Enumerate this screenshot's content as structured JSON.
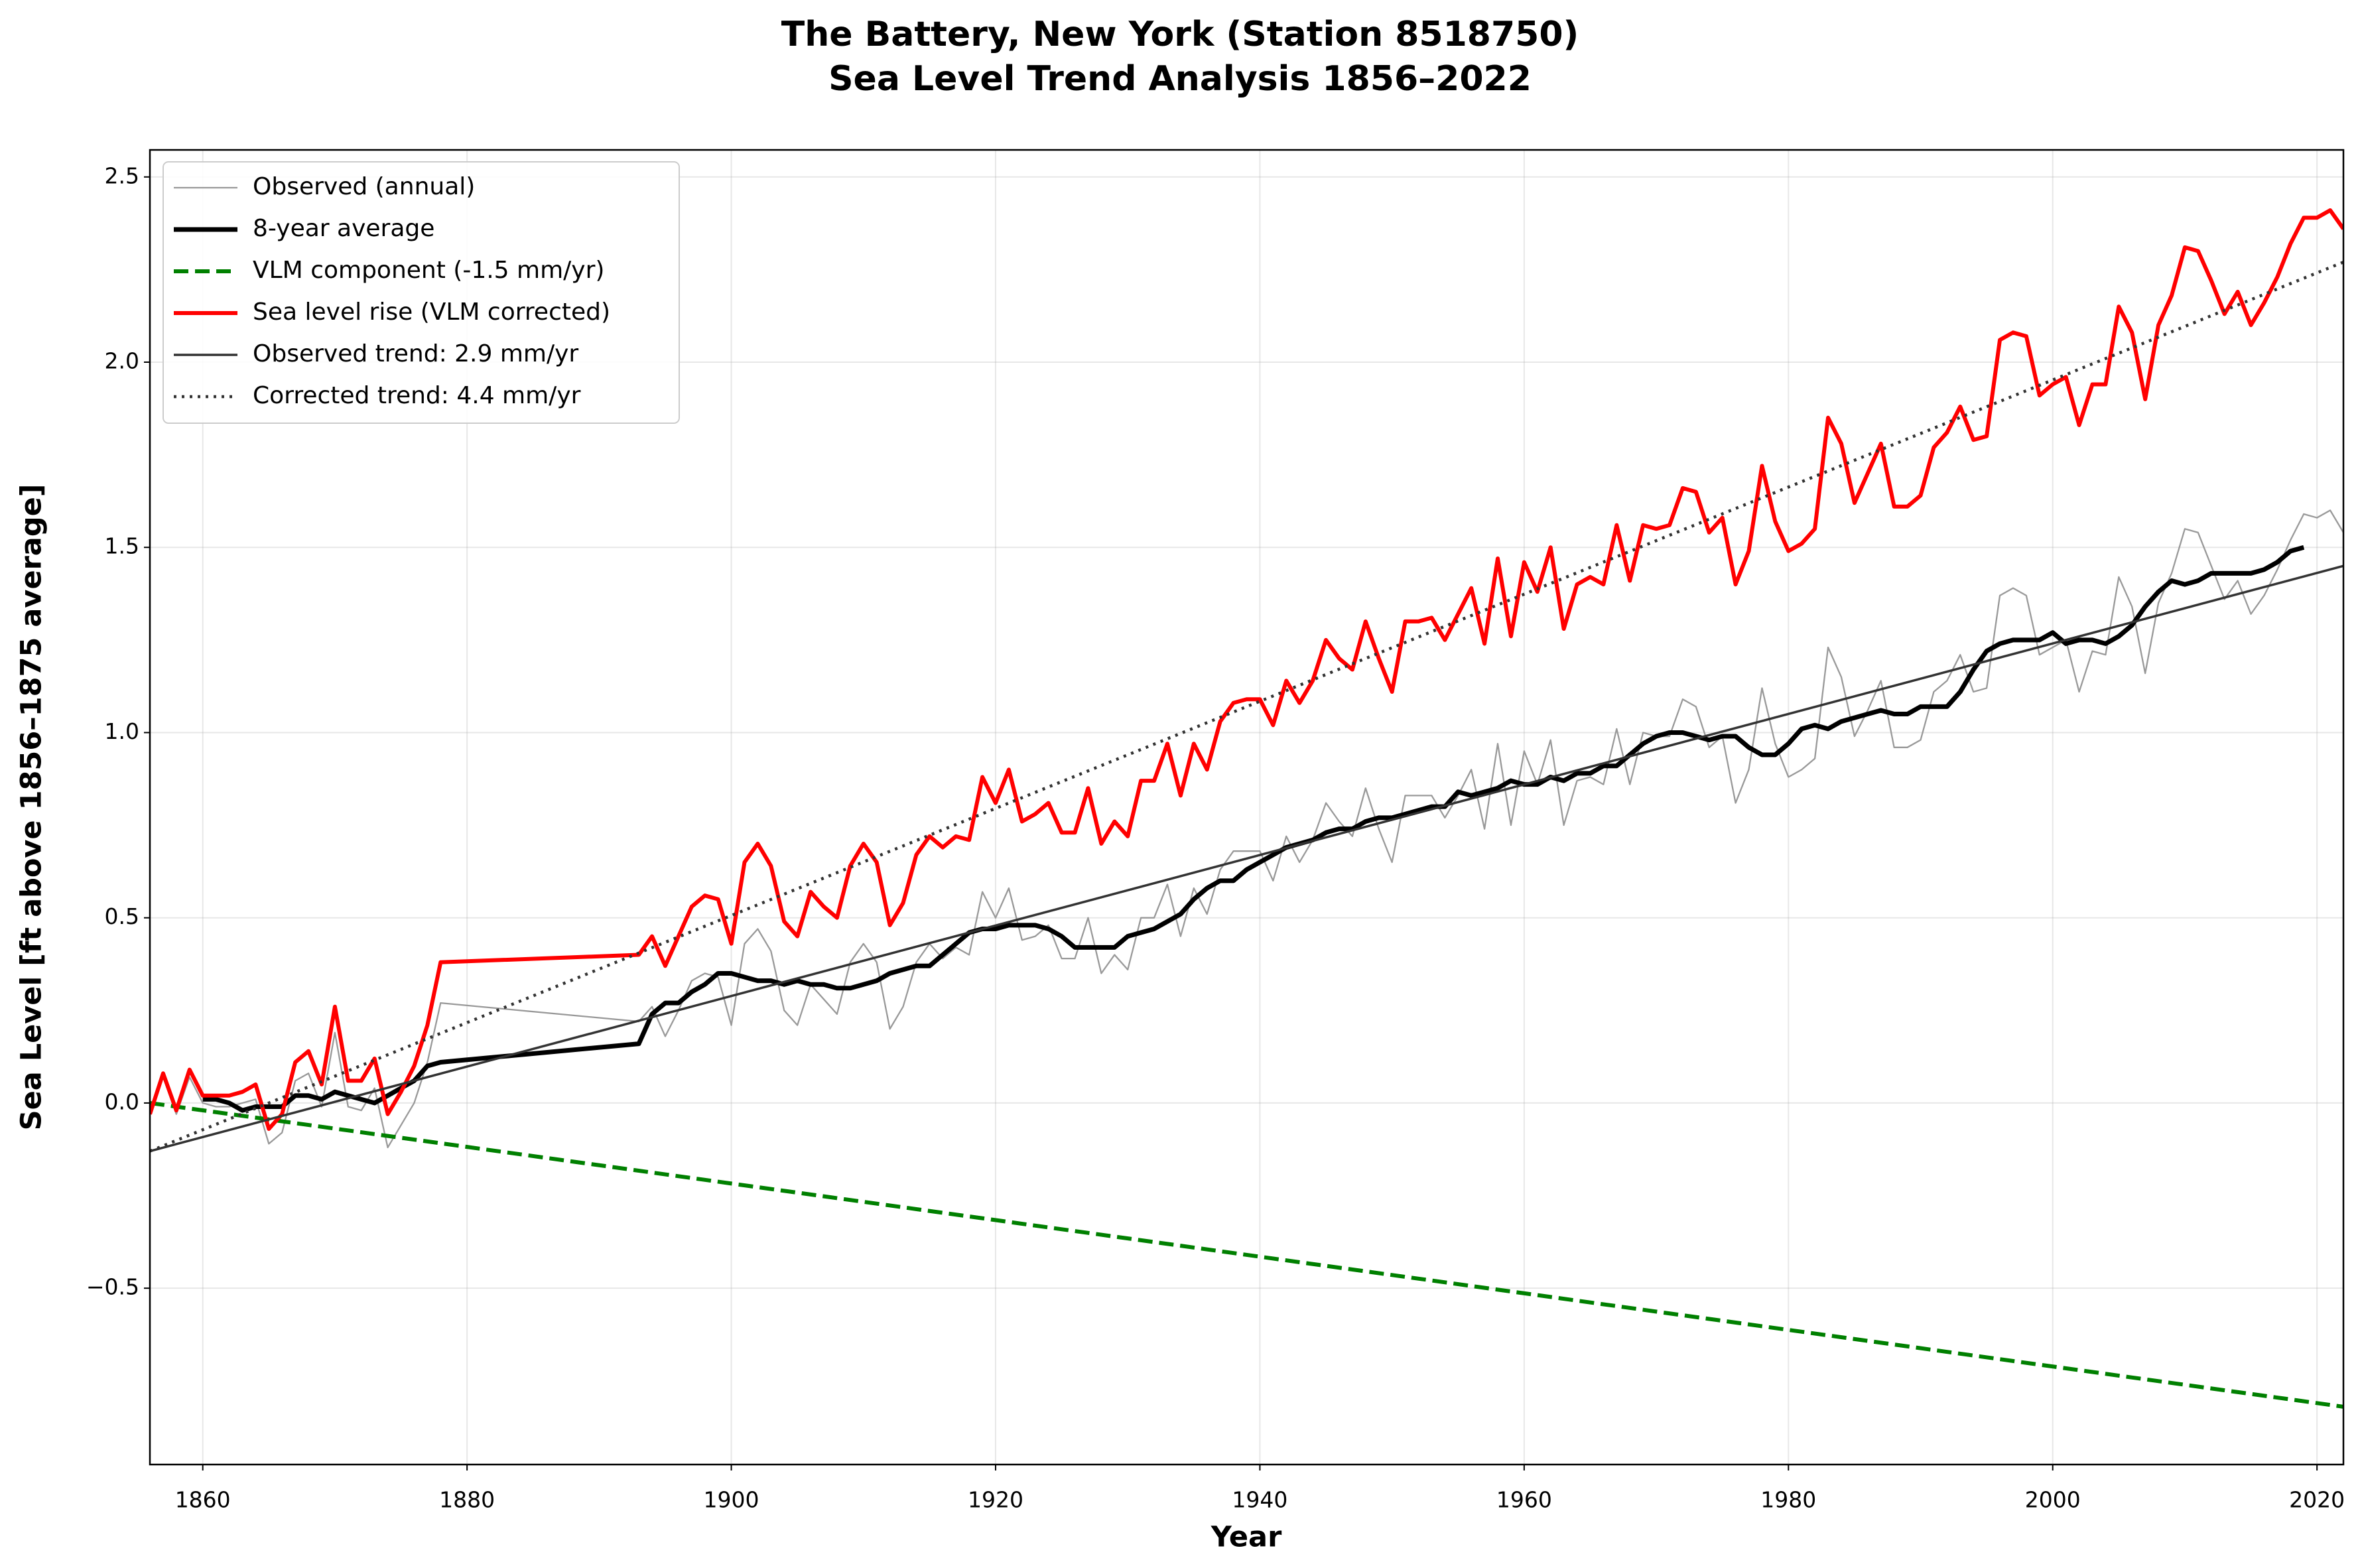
{
  "chart_data": {
    "type": "line",
    "title": "The Battery, New York (Station 8518750)",
    "subtitle": "Sea Level Trend Analysis 1856–2022",
    "x_label": "Year",
    "y_label": "Sea Level [ft above 1856–1875 average]",
    "xlim": [
      1856,
      2022
    ],
    "ylim": [
      -0.976,
      2.573
    ],
    "xticks": [
      1860,
      1880,
      1900,
      1920,
      1940,
      1960,
      1980,
      2000,
      2020
    ],
    "yticks": [
      {
        "value": -0.5,
        "label": "−0.5"
      },
      {
        "value": 0,
        "label": "0.0"
      },
      0.5,
      {
        "value": 1,
        "label": "1.0"
      },
      1.5,
      {
        "value": 2,
        "label": "2.0"
      },
      2.5
    ],
    "grid": true,
    "legend": "upper left",
    "x": [
      1856,
      1857,
      1858,
      1859,
      1860,
      1861,
      1862,
      1863,
      1864,
      1865,
      1866,
      1867,
      1868,
      1869,
      1870,
      1871,
      1872,
      1873,
      1874,
      1875,
      1876,
      1877,
      1878,
      1893,
      1894,
      1895,
      1896,
      1897,
      1898,
      1899,
      1900,
      1901,
      1902,
      1903,
      1904,
      1905,
      1906,
      1907,
      1908,
      1909,
      1910,
      1911,
      1912,
      1913,
      1914,
      1915,
      1916,
      1917,
      1918,
      1919,
      1920,
      1921,
      1922,
      1923,
      1924,
      1925,
      1926,
      1927,
      1928,
      1929,
      1930,
      1931,
      1932,
      1933,
      1934,
      1935,
      1936,
      1937,
      1938,
      1939,
      1940,
      1941,
      1942,
      1943,
      1944,
      1945,
      1946,
      1947,
      1948,
      1949,
      1950,
      1951,
      1952,
      1953,
      1954,
      1955,
      1956,
      1957,
      1958,
      1959,
      1960,
      1961,
      1962,
      1963,
      1964,
      1965,
      1966,
      1967,
      1968,
      1969,
      1970,
      1971,
      1972,
      1973,
      1974,
      1975,
      1976,
      1977,
      1978,
      1979,
      1980,
      1981,
      1982,
      1983,
      1984,
      1985,
      1986,
      1987,
      1988,
      1989,
      1990,
      1991,
      1992,
      1993,
      1994,
      1995,
      1996,
      1997,
      1998,
      1999,
      2000,
      2001,
      2002,
      2003,
      2004,
      2005,
      2006,
      2007,
      2008,
      2009,
      2010,
      2011,
      2012,
      2013,
      2014,
      2015,
      2016,
      2017,
      2018,
      2019,
      2020,
      2021,
      2022
    ],
    "series": [
      {
        "name": "Observed (annual)",
        "color": "#999999",
        "linewidth": 2.3,
        "linestyle": "solid",
        "values": [
          -0.03,
          0.07,
          -0.03,
          0.07,
          0.0,
          -0.01,
          -0.01,
          0.0,
          0.01,
          -0.11,
          -0.08,
          0.06,
          0.08,
          -0.01,
          0.19,
          -0.01,
          -0.02,
          0.04,
          -0.12,
          -0.06,
          0.0,
          0.11,
          0.27,
          0.22,
          0.26,
          0.18,
          0.25,
          0.33,
          0.35,
          0.34,
          0.21,
          0.43,
          0.47,
          0.41,
          0.25,
          0.21,
          0.32,
          0.28,
          0.24,
          0.38,
          0.43,
          0.38,
          0.2,
          0.26,
          0.38,
          0.43,
          0.39,
          0.42,
          0.4,
          0.57,
          0.5,
          0.58,
          0.44,
          0.45,
          0.48,
          0.39,
          0.39,
          0.5,
          0.35,
          0.4,
          0.36,
          0.5,
          0.5,
          0.59,
          0.45,
          0.58,
          0.51,
          0.63,
          0.68,
          0.68,
          0.68,
          0.6,
          0.72,
          0.65,
          0.71,
          0.81,
          0.76,
          0.72,
          0.85,
          0.74,
          0.65,
          0.83,
          0.83,
          0.83,
          0.77,
          0.83,
          0.9,
          0.74,
          0.97,
          0.75,
          0.95,
          0.86,
          0.98,
          0.75,
          0.87,
          0.88,
          0.86,
          1.01,
          0.86,
          1.0,
          0.99,
          0.99,
          1.09,
          1.07,
          0.96,
          0.99,
          0.81,
          0.9,
          1.12,
          0.97,
          0.88,
          0.9,
          0.93,
          1.23,
          1.15,
          0.99,
          1.06,
          1.14,
          0.96,
          0.96,
          0.98,
          1.11,
          1.14,
          1.21,
          1.11,
          1.12,
          1.37,
          1.39,
          1.37,
          1.21,
          1.23,
          1.25,
          1.11,
          1.22,
          1.21,
          1.42,
          1.34,
          1.16,
          1.35,
          1.43,
          1.55,
          1.54,
          1.45,
          1.36,
          1.41,
          1.32,
          1.37,
          1.44,
          1.52,
          1.59,
          1.58,
          1.6,
          1.54
        ]
      },
      {
        "name": "8-year average",
        "color": "#000000",
        "linewidth": 7,
        "linestyle": "solid",
        "x": [
          1860,
          1861,
          1862,
          1863,
          1864,
          1865,
          1866,
          1867,
          1868,
          1869,
          1870,
          1871,
          1872,
          1873,
          1874,
          1875,
          1876,
          1877,
          1878,
          1893,
          1894,
          1895,
          1896,
          1897,
          1898,
          1899,
          1900,
          1901,
          1902,
          1903,
          1904,
          1905,
          1906,
          1907,
          1908,
          1909,
          1910,
          1911,
          1912,
          1913,
          1914,
          1915,
          1916,
          1917,
          1918,
          1919,
          1920,
          1921,
          1922,
          1923,
          1924,
          1925,
          1926,
          1927,
          1928,
          1929,
          1930,
          1931,
          1932,
          1933,
          1934,
          1935,
          1936,
          1937,
          1938,
          1939,
          1940,
          1941,
          1942,
          1943,
          1944,
          1945,
          1946,
          1947,
          1948,
          1949,
          1950,
          1951,
          1952,
          1953,
          1954,
          1955,
          1956,
          1957,
          1958,
          1959,
          1960,
          1961,
          1962,
          1963,
          1964,
          1965,
          1966,
          1967,
          1968,
          1969,
          1970,
          1971,
          1972,
          1973,
          1974,
          1975,
          1976,
          1977,
          1978,
          1979,
          1980,
          1981,
          1982,
          1983,
          1984,
          1985,
          1986,
          1987,
          1988,
          1989,
          1990,
          1991,
          1992,
          1993,
          1994,
          1995,
          1996,
          1997,
          1998,
          1999,
          2000,
          2001,
          2002,
          2003,
          2004,
          2005,
          2006,
          2007,
          2008,
          2009,
          2010,
          2011,
          2012,
          2013,
          2014,
          2015,
          2016,
          2017,
          2018,
          2019
        ],
        "values": [
          0.01,
          0.01,
          0.0,
          -0.02,
          -0.01,
          -0.01,
          -0.01,
          0.02,
          0.02,
          0.01,
          0.03,
          0.02,
          0.01,
          0.0,
          0.02,
          0.04,
          0.06,
          0.1,
          0.11,
          0.16,
          0.24,
          0.27,
          0.27,
          0.3,
          0.32,
          0.35,
          0.35,
          0.34,
          0.33,
          0.33,
          0.32,
          0.33,
          0.32,
          0.32,
          0.31,
          0.31,
          0.32,
          0.33,
          0.35,
          0.36,
          0.37,
          0.37,
          0.4,
          0.43,
          0.46,
          0.47,
          0.47,
          0.48,
          0.48,
          0.48,
          0.47,
          0.45,
          0.42,
          0.42,
          0.42,
          0.42,
          0.45,
          0.46,
          0.47,
          0.49,
          0.51,
          0.55,
          0.58,
          0.6,
          0.6,
          0.63,
          0.65,
          0.67,
          0.69,
          0.7,
          0.71,
          0.73,
          0.74,
          0.74,
          0.76,
          0.77,
          0.77,
          0.78,
          0.79,
          0.8,
          0.8,
          0.84,
          0.83,
          0.84,
          0.85,
          0.87,
          0.86,
          0.86,
          0.88,
          0.87,
          0.89,
          0.89,
          0.91,
          0.91,
          0.94,
          0.97,
          0.99,
          1.0,
          1.0,
          0.99,
          0.98,
          0.99,
          0.99,
          0.96,
          0.94,
          0.94,
          0.97,
          1.01,
          1.02,
          1.01,
          1.03,
          1.04,
          1.05,
          1.06,
          1.05,
          1.05,
          1.07,
          1.07,
          1.07,
          1.11,
          1.17,
          1.22,
          1.24,
          1.25,
          1.25,
          1.25,
          1.27,
          1.24,
          1.25,
          1.25,
          1.24,
          1.26,
          1.29,
          1.34,
          1.38,
          1.41,
          1.4,
          1.41,
          1.43,
          1.43,
          1.43,
          1.43,
          1.44,
          1.46,
          1.49,
          1.5
        ]
      },
      {
        "name": "VLM component (-1.5 mm/yr)",
        "color": "#008000",
        "linewidth": 6,
        "linestyle": "dashed",
        "x": [
          1856,
          2022
        ],
        "values": [
          0,
          -0.82
        ]
      },
      {
        "name": "Sea level rise (VLM corrected)",
        "color": "#ff0000",
        "linewidth": 6,
        "linestyle": "solid",
        "values": [
          -0.03,
          0.08,
          -0.02,
          0.09,
          0.02,
          0.02,
          0.02,
          0.03,
          0.05,
          -0.07,
          -0.03,
          0.11,
          0.14,
          0.05,
          0.26,
          0.06,
          0.06,
          0.12,
          -0.03,
          0.03,
          0.1,
          0.21,
          0.38,
          0.4,
          0.45,
          0.37,
          0.45,
          0.53,
          0.56,
          0.55,
          0.43,
          0.65,
          0.7,
          0.64,
          0.49,
          0.45,
          0.57,
          0.53,
          0.5,
          0.64,
          0.7,
          0.65,
          0.48,
          0.54,
          0.67,
          0.72,
          0.69,
          0.72,
          0.71,
          0.88,
          0.81,
          0.9,
          0.76,
          0.78,
          0.81,
          0.73,
          0.73,
          0.85,
          0.7,
          0.76,
          0.72,
          0.87,
          0.87,
          0.97,
          0.83,
          0.97,
          0.9,
          1.03,
          1.08,
          1.09,
          1.09,
          1.02,
          1.14,
          1.08,
          1.14,
          1.25,
          1.2,
          1.17,
          1.3,
          1.2,
          1.11,
          1.3,
          1.3,
          1.31,
          1.25,
          1.32,
          1.39,
          1.24,
          1.47,
          1.26,
          1.46,
          1.38,
          1.5,
          1.28,
          1.4,
          1.42,
          1.4,
          1.56,
          1.41,
          1.56,
          1.55,
          1.56,
          1.66,
          1.65,
          1.54,
          1.58,
          1.4,
          1.49,
          1.72,
          1.57,
          1.49,
          1.51,
          1.55,
          1.85,
          1.78,
          1.62,
          1.7,
          1.78,
          1.61,
          1.61,
          1.64,
          1.77,
          1.81,
          1.88,
          1.79,
          1.8,
          2.06,
          2.08,
          2.07,
          1.91,
          1.94,
          1.96,
          1.83,
          1.94,
          1.94,
          2.15,
          2.08,
          1.9,
          2.1,
          2.18,
          2.31,
          2.3,
          2.22,
          2.13,
          2.19,
          2.1,
          2.16,
          2.23,
          2.32,
          2.39,
          2.39,
          2.41,
          2.36
        ]
      },
      {
        "name": "Observed trend: 2.9 mm/yr",
        "color": "#333333",
        "linewidth": 3.5,
        "linestyle": "solid",
        "x": [
          1856,
          2022
        ],
        "values": [
          -0.13,
          1.45
        ]
      },
      {
        "name": "Corrected trend: 4.4 mm/yr",
        "color": "#333333",
        "linewidth": 4.5,
        "linestyle": "dotted",
        "x": [
          1856,
          2022
        ],
        "values": [
          -0.13,
          2.27
        ]
      }
    ]
  }
}
